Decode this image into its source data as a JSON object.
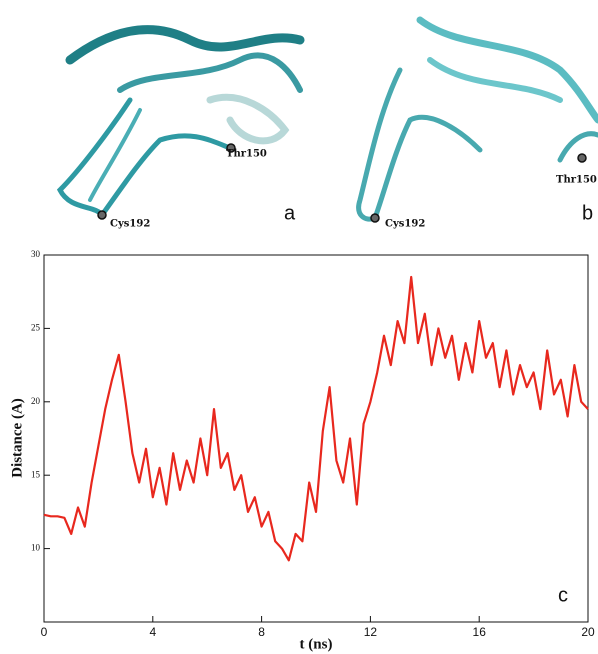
{
  "panels": [
    {
      "label": "a",
      "residues": [
        "Thr150",
        "Cys192"
      ]
    },
    {
      "label": "b",
      "residues": [
        "Cys192",
        "Thr150"
      ]
    }
  ],
  "chart_data": {
    "type": "line",
    "xlabel": "t (ns)",
    "ylabel": "Distance (A)",
    "annotations": [
      "c"
    ],
    "color": "#e8281e",
    "xlim": [
      0,
      20
    ],
    "xticks": [
      0,
      4,
      8,
      12,
      16,
      20
    ],
    "ylim": [
      5,
      30
    ],
    "yticks": [
      10,
      15,
      20,
      25,
      30
    ],
    "x": [
      0,
      0.25,
      0.5,
      0.75,
      1,
      1.25,
      1.5,
      1.75,
      2,
      2.25,
      2.5,
      2.75,
      3,
      3.25,
      3.5,
      3.75,
      4,
      4.25,
      4.5,
      4.75,
      5,
      5.25,
      5.5,
      5.75,
      6,
      6.25,
      6.5,
      6.75,
      7,
      7.25,
      7.5,
      7.75,
      8,
      8.25,
      8.5,
      8.75,
      9,
      9.25,
      9.5,
      9.75,
      10,
      10.25,
      10.5,
      10.75,
      11,
      11.25,
      11.5,
      11.75,
      12,
      12.25,
      12.5,
      12.75,
      13,
      13.25,
      13.5,
      13.75,
      14,
      14.25,
      14.5,
      14.75,
      15,
      15.25,
      15.5,
      15.75,
      16,
      16.25,
      16.5,
      16.75,
      17,
      17.25,
      17.5,
      17.75,
      18,
      18.25,
      18.5,
      18.75,
      19,
      19.25,
      19.5,
      19.75,
      20
    ],
    "values": [
      12.3,
      12.2,
      12.2,
      12.1,
      11.0,
      12.8,
      11.5,
      14.5,
      17.0,
      19.5,
      21.5,
      23.2,
      20.0,
      16.5,
      14.5,
      16.8,
      13.5,
      15.5,
      13.0,
      16.5,
      14.0,
      16.0,
      14.5,
      17.5,
      15.0,
      19.5,
      15.5,
      16.5,
      14.0,
      15.0,
      12.5,
      13.5,
      11.5,
      12.5,
      10.5,
      10.0,
      9.2,
      11.0,
      10.5,
      14.5,
      12.5,
      18.0,
      21.0,
      16.0,
      14.5,
      17.5,
      13.0,
      18.5,
      20.0,
      22.0,
      24.5,
      22.5,
      25.5,
      24.0,
      28.5,
      24.0,
      26.0,
      22.5,
      25.0,
      23.0,
      24.5,
      21.5,
      24.0,
      22.0,
      25.5,
      23.0,
      24.0,
      21.0,
      23.5,
      20.5,
      22.5,
      21.0,
      22.0,
      19.5,
      23.5,
      20.5,
      21.5,
      19.0,
      22.5,
      20.0,
      19.5
    ]
  }
}
